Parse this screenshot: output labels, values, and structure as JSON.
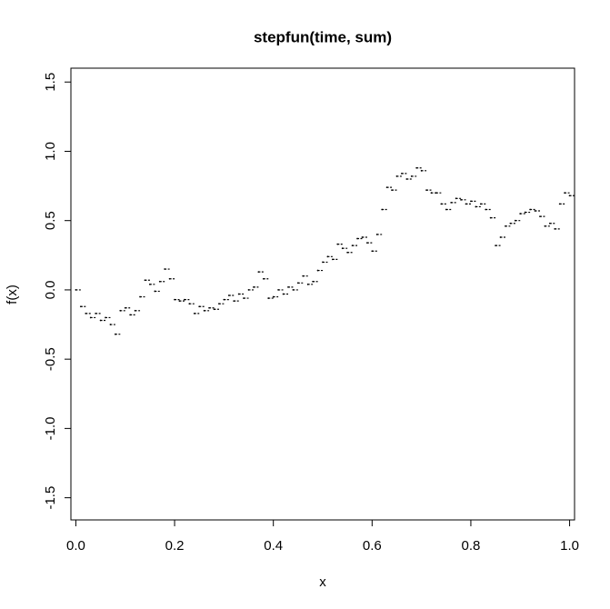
{
  "chart_data": {
    "type": "step",
    "title": "stepfun(time, sum)",
    "x_label": "x",
    "y_label": "f(x)",
    "color": "#000000",
    "x": [
      0.0,
      0.01,
      0.02,
      0.03,
      0.04,
      0.05,
      0.06,
      0.07,
      0.08,
      0.09,
      0.1,
      0.11,
      0.12,
      0.13,
      0.14,
      0.15,
      0.16,
      0.17,
      0.18,
      0.19,
      0.2,
      0.21,
      0.22,
      0.23,
      0.24,
      0.25,
      0.26,
      0.27,
      0.28,
      0.29,
      0.3,
      0.31,
      0.32,
      0.33,
      0.34,
      0.35,
      0.36,
      0.37,
      0.38,
      0.39,
      0.4,
      0.41,
      0.42,
      0.43,
      0.44,
      0.45,
      0.46,
      0.47,
      0.48,
      0.49,
      0.5,
      0.51,
      0.52,
      0.53,
      0.54,
      0.55,
      0.56,
      0.57,
      0.58,
      0.59,
      0.6,
      0.61,
      0.62,
      0.63,
      0.64,
      0.65,
      0.66,
      0.67,
      0.68,
      0.69,
      0.7,
      0.71,
      0.72,
      0.73,
      0.74,
      0.75,
      0.76,
      0.77,
      0.78,
      0.79,
      0.8,
      0.81,
      0.82,
      0.83,
      0.84,
      0.85,
      0.86,
      0.87,
      0.88,
      0.89,
      0.9,
      0.91,
      0.92,
      0.93,
      0.94,
      0.95,
      0.96,
      0.97,
      0.98,
      0.99,
      1.0
    ],
    "values": [
      0.0,
      -0.12,
      -0.17,
      -0.2,
      -0.17,
      -0.22,
      -0.2,
      -0.25,
      -0.32,
      -0.15,
      -0.13,
      -0.18,
      -0.15,
      -0.05,
      0.07,
      0.04,
      -0.01,
      0.06,
      0.15,
      0.08,
      -0.07,
      -0.08,
      -0.07,
      -0.1,
      -0.17,
      -0.12,
      -0.15,
      -0.13,
      -0.14,
      -0.1,
      -0.07,
      -0.04,
      -0.08,
      -0.03,
      -0.06,
      0.0,
      0.02,
      0.13,
      0.08,
      -0.06,
      -0.05,
      0.0,
      -0.03,
      0.02,
      0.0,
      0.05,
      0.1,
      0.04,
      0.06,
      0.14,
      0.2,
      0.24,
      0.22,
      0.33,
      0.3,
      0.27,
      0.32,
      0.37,
      0.38,
      0.34,
      0.28,
      0.4,
      0.58,
      0.74,
      0.72,
      0.82,
      0.84,
      0.8,
      0.82,
      0.88,
      0.86,
      0.72,
      0.7,
      0.7,
      0.62,
      0.58,
      0.63,
      0.66,
      0.65,
      0.62,
      0.64,
      0.6,
      0.62,
      0.58,
      0.52,
      0.32,
      0.38,
      0.46,
      0.48,
      0.5,
      0.55,
      0.56,
      0.58,
      0.57,
      0.53,
      0.46,
      0.48,
      0.44,
      0.62,
      0.7,
      0.68
    ],
    "xlim": [
      -0.01,
      1.01
    ],
    "ylim": [
      -1.66,
      1.6
    ],
    "xticks": [
      {
        "value": 0,
        "label": "0.0"
      },
      0.2,
      0.4,
      0.6,
      0.8,
      {
        "value": 1,
        "label": "1.0"
      }
    ],
    "yticks": [
      -1.5,
      {
        "value": -1,
        "label": "-1.0"
      },
      -0.5,
      {
        "value": 0,
        "label": "0.0"
      },
      0.5,
      {
        "value": 1,
        "label": "1.0"
      },
      1.5
    ]
  }
}
